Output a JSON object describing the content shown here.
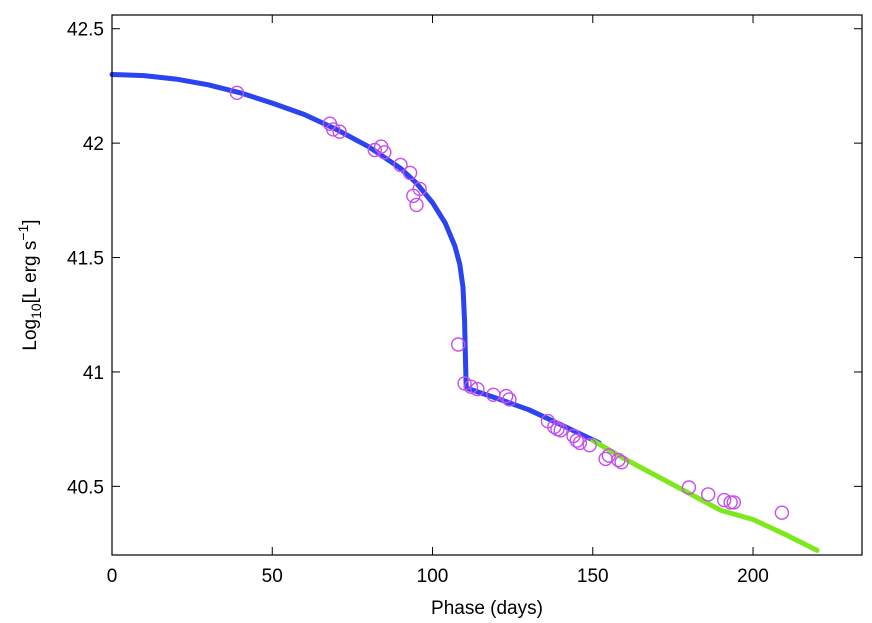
{
  "chart_data": {
    "type": "scatter",
    "xlabel": "Phase (days)",
    "ylabel": {
      "prefix": "Log",
      "sub": "10",
      "middle": "[L erg s",
      "sup": "−1",
      "suffix": "]"
    },
    "xlim": [
      0,
      234
    ],
    "ylim": [
      40.2,
      42.56
    ],
    "xticks": [
      0,
      50,
      100,
      150,
      200
    ],
    "xtick_labels": [
      "0",
      "50",
      "100",
      "150",
      "200"
    ],
    "yticks": [
      40.5,
      41,
      41.5,
      42,
      42.5
    ],
    "ytick_labels": [
      "40.5",
      "41",
      "41.5",
      "42",
      "42.5"
    ],
    "grid": false,
    "series": [
      {
        "kind": "line",
        "color": "#2b44f0",
        "points": [
          [
            0,
            42.3
          ],
          [
            10,
            42.295
          ],
          [
            20,
            42.28
          ],
          [
            30,
            42.255
          ],
          [
            40,
            42.22
          ],
          [
            50,
            42.175
          ],
          [
            60,
            42.125
          ],
          [
            70,
            42.06
          ],
          [
            80,
            41.985
          ],
          [
            90,
            41.89
          ],
          [
            95,
            41.825
          ],
          [
            100,
            41.74
          ],
          [
            104,
            41.65
          ],
          [
            107,
            41.55
          ],
          [
            108.5,
            41.47
          ],
          [
            109.5,
            41.37
          ],
          [
            110,
            41.22
          ],
          [
            110.3,
            41.05
          ],
          [
            110.5,
            40.93
          ],
          [
            120,
            40.885
          ],
          [
            130,
            40.835
          ],
          [
            140,
            40.77
          ],
          [
            152,
            40.69
          ]
        ]
      },
      {
        "kind": "line",
        "color": "#7de81c",
        "points": [
          [
            150,
            40.7
          ],
          [
            160,
            40.62
          ],
          [
            170,
            40.545
          ],
          [
            180,
            40.47
          ],
          [
            190,
            40.395
          ],
          [
            200,
            40.355
          ],
          [
            210,
            40.29
          ],
          [
            220,
            40.22
          ]
        ]
      },
      {
        "kind": "markers",
        "marker": "open-circle",
        "color": "#c74ef0",
        "points": [
          [
            39,
            42.22
          ],
          [
            68,
            42.085
          ],
          [
            69,
            42.06
          ],
          [
            71,
            42.05
          ],
          [
            82,
            41.97
          ],
          [
            84,
            41.985
          ],
          [
            85,
            41.96
          ],
          [
            90,
            41.905
          ],
          [
            93,
            41.87
          ],
          [
            94,
            41.77
          ],
          [
            95,
            41.73
          ],
          [
            96,
            41.8
          ],
          [
            108,
            41.12
          ],
          [
            110,
            40.95
          ],
          [
            112,
            40.935
          ],
          [
            114,
            40.925
          ],
          [
            119,
            40.9
          ],
          [
            123,
            40.895
          ],
          [
            124,
            40.88
          ],
          [
            136,
            40.785
          ],
          [
            138,
            40.76
          ],
          [
            139,
            40.75
          ],
          [
            140,
            40.745
          ],
          [
            144,
            40.72
          ],
          [
            145,
            40.7
          ],
          [
            146,
            40.69
          ],
          [
            149,
            40.68
          ],
          [
            154,
            40.62
          ],
          [
            155,
            40.635
          ],
          [
            158,
            40.615
          ],
          [
            159,
            40.605
          ],
          [
            180,
            40.495
          ],
          [
            186,
            40.465
          ],
          [
            191,
            40.44
          ],
          [
            193,
            40.43
          ],
          [
            194,
            40.43
          ],
          [
            209,
            40.385
          ]
        ]
      }
    ]
  }
}
